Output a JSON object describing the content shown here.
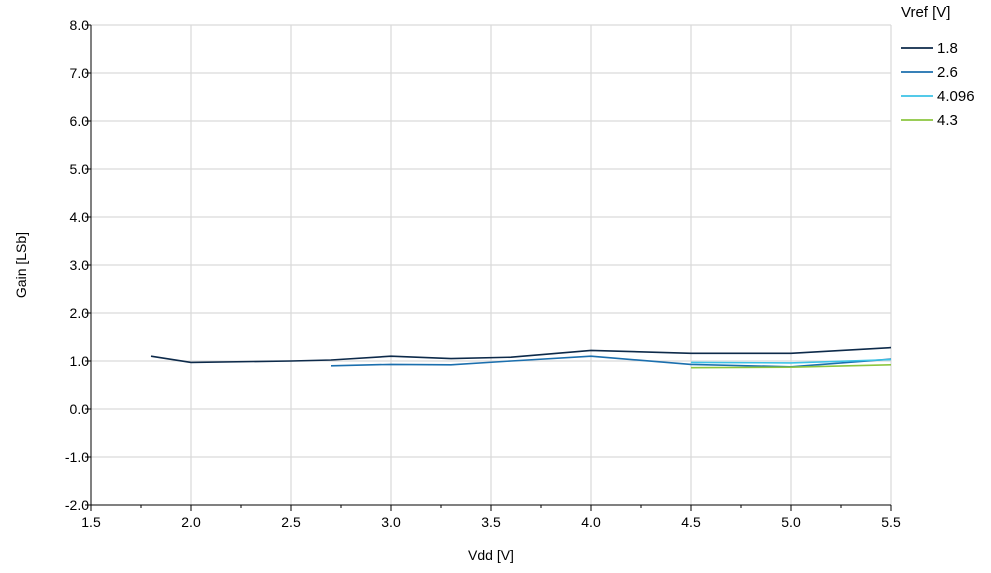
{
  "chart_data": {
    "type": "line",
    "xlabel": "Vdd [V]",
    "ylabel": "Gain [LSb]",
    "xlim": [
      1.5,
      5.5
    ],
    "ylim": [
      -2.0,
      8.0
    ],
    "xticks": [
      "1.5",
      "2.0",
      "2.5",
      "3.0",
      "3.5",
      "4.0",
      "4.5",
      "5.0",
      "5.5"
    ],
    "yticks": [
      "-2.0",
      "-1.0",
      "0.0",
      "1.0",
      "2.0",
      "3.0",
      "4.0",
      "5.0",
      "6.0",
      "7.0",
      "8.0"
    ],
    "grid": true,
    "legend": {
      "title": "Vref [V]",
      "placement": "top-right-outside"
    },
    "series": [
      {
        "name": "1.8",
        "color": "#0d2a4a",
        "x": [
          1.8,
          2.0,
          2.5,
          2.7,
          3.0,
          3.3,
          3.6,
          4.0,
          4.5,
          5.0,
          5.5
        ],
        "y": [
          1.1,
          0.97,
          1.0,
          1.02,
          1.1,
          1.05,
          1.08,
          1.22,
          1.16,
          1.16,
          1.28
        ]
      },
      {
        "name": "2.6",
        "color": "#1b6fae",
        "x": [
          2.7,
          3.0,
          3.3,
          3.6,
          4.0,
          4.5,
          5.0,
          5.5
        ],
        "y": [
          0.9,
          0.93,
          0.92,
          1.0,
          1.1,
          0.93,
          0.88,
          1.04
        ]
      },
      {
        "name": "4.096",
        "color": "#3cc3e6",
        "x": [
          4.5,
          5.0,
          5.5
        ],
        "y": [
          0.97,
          0.96,
          1.03
        ]
      },
      {
        "name": "4.3",
        "color": "#8cc63f",
        "x": [
          4.5,
          5.0,
          5.5
        ],
        "y": [
          0.86,
          0.87,
          0.92
        ]
      }
    ]
  }
}
